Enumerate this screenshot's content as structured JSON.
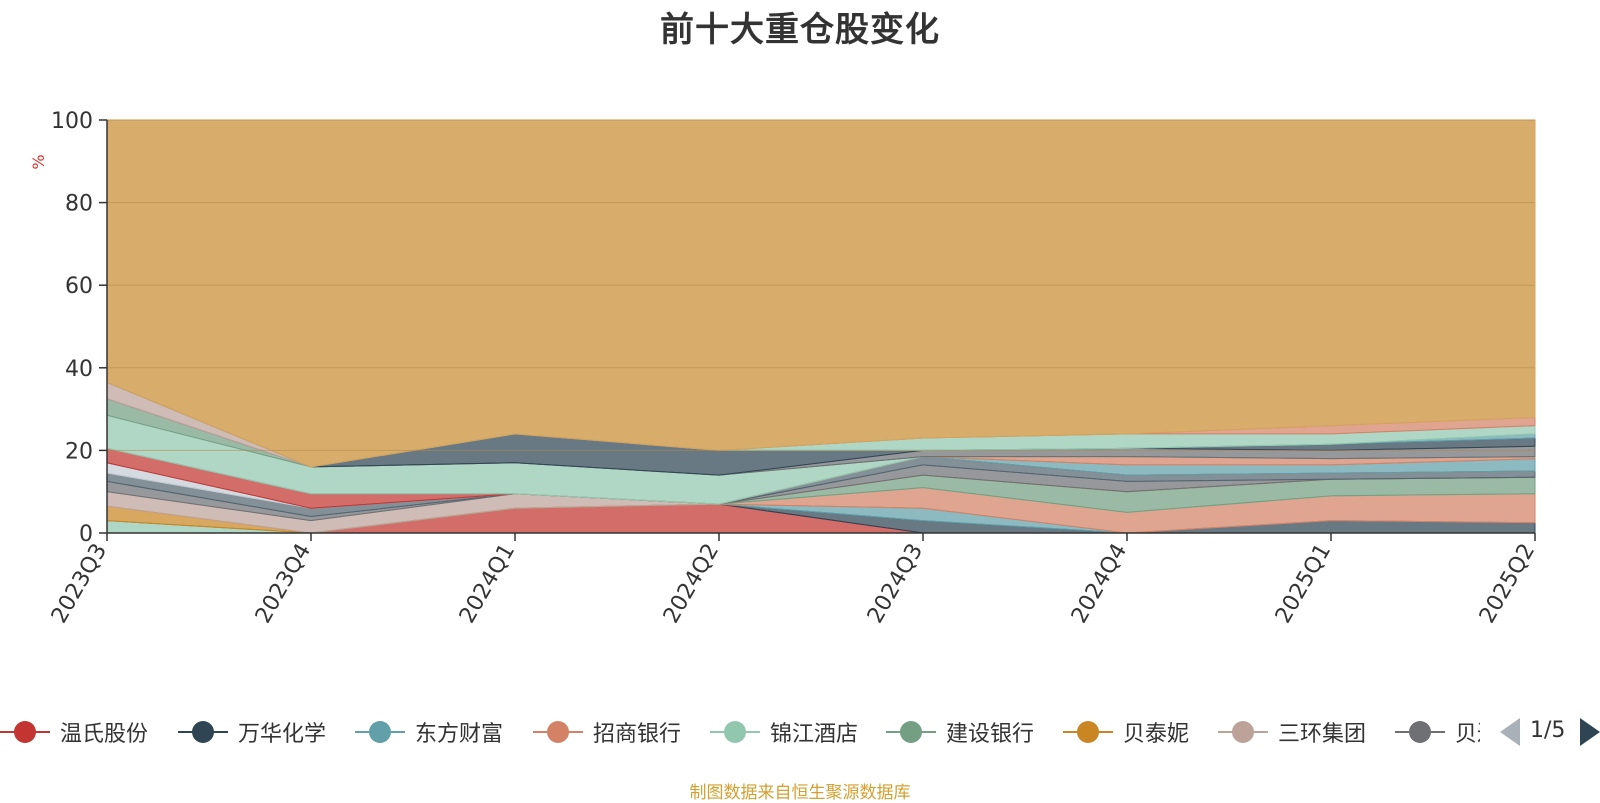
{
  "page": {
    "title": "前十大重仓股变化",
    "footer": "制图数据来自恒生聚源数据库",
    "pager_text": "1/5"
  },
  "chart_data": {
    "type": "area",
    "stacked": true,
    "title": "前十大重仓股变化",
    "ylabel": "%",
    "ylim": [
      0,
      100
    ],
    "yticks": [
      0,
      20,
      40,
      60,
      80,
      100
    ],
    "x": [
      "2023Q3",
      "2023Q4",
      "2024Q1",
      "2024Q2",
      "2024Q3",
      "2024Q4",
      "2025Q1",
      "2025Q2"
    ],
    "grid": true,
    "legend_position": "bottom",
    "series": [
      {
        "name": "温氏股份",
        "color": "#c23531",
        "values": [
          0,
          0,
          6,
          7,
          0,
          0,
          0,
          0
        ]
      },
      {
        "name": "万华化学",
        "color": "#2f4554",
        "values": [
          0,
          0,
          0,
          0,
          3,
          0,
          3,
          2.5
        ]
      },
      {
        "name": "东方财富",
        "color": "#61a0a8",
        "values": [
          0,
          0,
          0,
          0,
          3,
          0,
          0,
          0
        ]
      },
      {
        "name": "招商银行",
        "color": "#d48265",
        "values": [
          0,
          0,
          0,
          0,
          5,
          5,
          6,
          7
        ]
      },
      {
        "name": "锦江酒店",
        "color": "#91c7ae",
        "values": [
          3,
          0,
          0,
          0,
          0,
          0,
          0,
          0
        ]
      },
      {
        "name": "建设银行",
        "color": "#749f83",
        "values": [
          0,
          0,
          0,
          0,
          3,
          5,
          4,
          4
        ]
      },
      {
        "name": "贝泰妮",
        "color": "#ca8622",
        "values": [
          3.5,
          0,
          0,
          0,
          0,
          0,
          0,
          0
        ]
      },
      {
        "name": "三环集团",
        "color": "#bda29a",
        "values": [
          3.5,
          3,
          3.5,
          0,
          0,
          0,
          0,
          0
        ]
      },
      {
        "name": "贝达药业",
        "color": "#6e7074",
        "values": [
          2.5,
          1,
          0,
          0,
          2.5,
          2.5,
          0,
          0
        ]
      }
    ],
    "legend_visible": [
      "温氏股份",
      "万华化学",
      "东方财富",
      "招商银行",
      "锦江酒店",
      "建设银行",
      "贝泰妮",
      "三环集团",
      "贝达药业"
    ],
    "hidden_series_colors": [
      "#546570",
      "#c4ccd3",
      "#c23531",
      "#61a0a8",
      "#d48265",
      "#91c7ae",
      "#749f83",
      "#6e7074",
      "#bda29a",
      "#2f4554",
      "#61a0a8",
      "#91c7ae",
      "#d48265"
    ],
    "hidden_series_values": [
      [
        2,
        2,
        0,
        0,
        2,
        1.5,
        1.5,
        1.5
      ],
      [
        2.5,
        0,
        0,
        0,
        0,
        0,
        0,
        0
      ],
      [
        3.5,
        3.5,
        0,
        0,
        0,
        0,
        0,
        0
      ],
      [
        0,
        0,
        0,
        0,
        0,
        2.5,
        2,
        3
      ],
      [
        0,
        0,
        0,
        0,
        0,
        2,
        1.5,
        0.5
      ],
      [
        8,
        6.5,
        7.5,
        7,
        0,
        0,
        0,
        0
      ],
      [
        4,
        0,
        0,
        0,
        0,
        0,
        0,
        0
      ],
      [
        0,
        0,
        0,
        0,
        1.5,
        2,
        2,
        2.5
      ],
      [
        4,
        0,
        0,
        0,
        0,
        0,
        0,
        0
      ],
      [
        0,
        0,
        7,
        6,
        0,
        0,
        1.5,
        2
      ],
      [
        0,
        0,
        0,
        0,
        0,
        0,
        0,
        1
      ],
      [
        0,
        0,
        0,
        0,
        3,
        3.5,
        2.5,
        2
      ],
      [
        0,
        0,
        0,
        0,
        0,
        0,
        2,
        2
      ]
    ],
    "top_series": {
      "color": "#d4a45c",
      "values": [
        60,
        59,
        44,
        37,
        66,
        67.5,
        67,
        67
      ]
    }
  },
  "legend": {
    "items": [
      {
        "label": "温氏股份",
        "color": "#c23531"
      },
      {
        "label": "万华化学",
        "color": "#2f4554"
      },
      {
        "label": "东方财富",
        "color": "#61a0a8"
      },
      {
        "label": "招商银行",
        "color": "#d48265"
      },
      {
        "label": "锦江酒店",
        "color": "#91c7ae"
      },
      {
        "label": "建设银行",
        "color": "#749f83"
      },
      {
        "label": "贝泰妮",
        "color": "#ca8622"
      },
      {
        "label": "三环集团",
        "color": "#bda29a"
      },
      {
        "label": "贝达药业",
        "color": "#6e7074"
      }
    ]
  }
}
